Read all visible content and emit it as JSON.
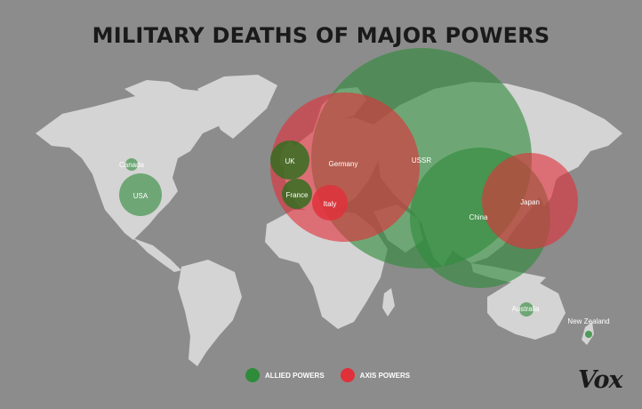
{
  "title": "MILITARY DEATHS OF MAJOR POWERS",
  "colors": {
    "allied": "#2e8b3a",
    "axis": "#e0303a",
    "land": "#d4d4d4",
    "background": "#8c8c8c"
  },
  "legend": [
    {
      "label": "ALLIED POWERS",
      "color": "#2e8b3a"
    },
    {
      "label": "AXIS POWERS",
      "color": "#e0303a"
    }
  ],
  "bubbles": [
    {
      "label": "USSR",
      "group": "allied"
    },
    {
      "label": "China",
      "group": "allied"
    },
    {
      "label": "Germany",
      "group": "axis"
    },
    {
      "label": "Japan",
      "group": "axis"
    },
    {
      "label": "UK",
      "group": "allied"
    },
    {
      "label": "France",
      "group": "allied"
    },
    {
      "label": "Italy",
      "group": "axis"
    },
    {
      "label": "USA",
      "group": "allied"
    },
    {
      "label": "Canada",
      "group": "allied"
    },
    {
      "label": "Australia",
      "group": "allied"
    },
    {
      "label": "New Zealand",
      "group": "allied"
    }
  ],
  "logo": "Vox"
}
